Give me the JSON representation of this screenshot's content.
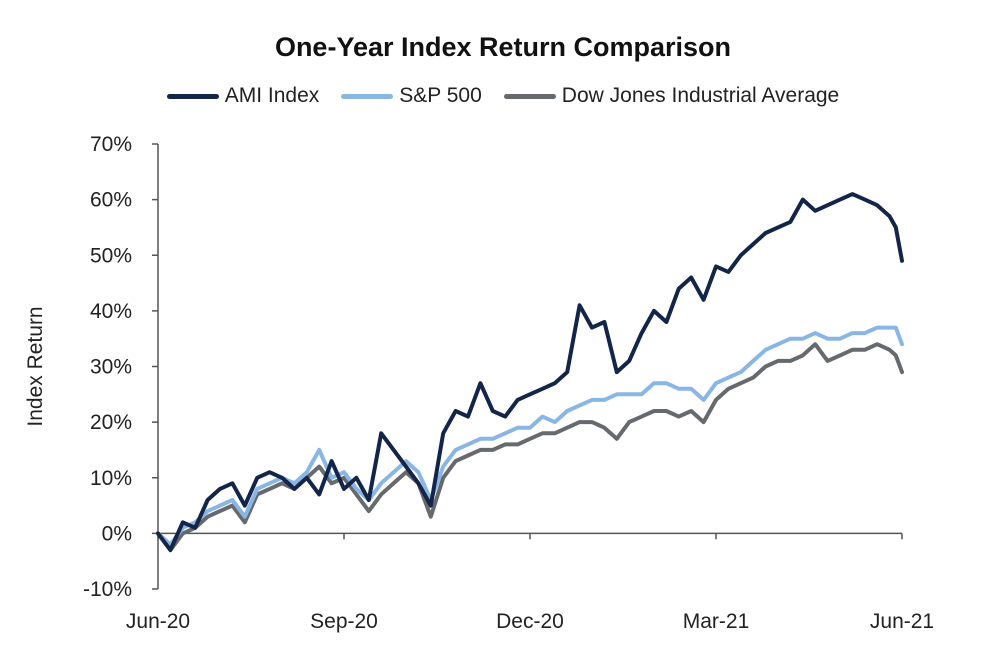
{
  "chart_data": {
    "type": "line",
    "title": "One-Year Index Return Comparison",
    "xlabel": "",
    "ylabel": "Index Return",
    "ylim": [
      -0.1,
      0.7
    ],
    "y_ticks": [
      -0.1,
      0.0,
      0.1,
      0.2,
      0.3,
      0.4,
      0.5,
      0.6,
      0.7
    ],
    "y_tick_labels": [
      "-10%",
      "0%",
      "10%",
      "20%",
      "30%",
      "40%",
      "50%",
      "60%",
      "70%"
    ],
    "y_format": "percent",
    "x_tick_labels": [
      "Jun-20",
      "Sep-20",
      "Dec-20",
      "Mar-21",
      "Jun-21"
    ],
    "x_tick_positions": [
      0,
      3,
      6,
      9,
      12
    ],
    "x_unit": "months since Jun-20",
    "grid": false,
    "legend_position": "top-center",
    "series": [
      {
        "name": "AMI Index",
        "color": "#14254a",
        "x": [
          0,
          0.2,
          0.4,
          0.6,
          0.8,
          1.0,
          1.2,
          1.4,
          1.6,
          1.8,
          2.0,
          2.2,
          2.4,
          2.6,
          2.8,
          3.0,
          3.2,
          3.4,
          3.6,
          3.8,
          4.0,
          4.2,
          4.4,
          4.6,
          4.8,
          5.0,
          5.2,
          5.4,
          5.6,
          5.8,
          6.0,
          6.2,
          6.4,
          6.6,
          6.8,
          7.0,
          7.2,
          7.4,
          7.6,
          7.8,
          8.0,
          8.2,
          8.4,
          8.6,
          8.8,
          9.0,
          9.2,
          9.4,
          9.6,
          9.8,
          10.0,
          10.2,
          10.4,
          10.6,
          10.8,
          11.0,
          11.2,
          11.4,
          11.6,
          11.8,
          11.9,
          12.0
        ],
        "values": [
          0.0,
          -0.03,
          0.02,
          0.01,
          0.06,
          0.08,
          0.09,
          0.05,
          0.1,
          0.11,
          0.1,
          0.08,
          0.1,
          0.07,
          0.13,
          0.08,
          0.1,
          0.06,
          0.18,
          0.15,
          0.12,
          0.09,
          0.05,
          0.18,
          0.22,
          0.21,
          0.27,
          0.22,
          0.21,
          0.24,
          0.25,
          0.26,
          0.27,
          0.29,
          0.41,
          0.37,
          0.38,
          0.29,
          0.31,
          0.36,
          0.4,
          0.38,
          0.44,
          0.46,
          0.42,
          0.48,
          0.47,
          0.5,
          0.52,
          0.54,
          0.55,
          0.56,
          0.6,
          0.58,
          0.59,
          0.6,
          0.61,
          0.6,
          0.59,
          0.57,
          0.55,
          0.49
        ]
      },
      {
        "name": "S&P 500",
        "color": "#8ab6e6",
        "x": [
          0,
          0.2,
          0.4,
          0.6,
          0.8,
          1.0,
          1.2,
          1.4,
          1.6,
          1.8,
          2.0,
          2.2,
          2.4,
          2.6,
          2.8,
          3.0,
          3.2,
          3.4,
          3.6,
          3.8,
          4.0,
          4.2,
          4.4,
          4.6,
          4.8,
          5.0,
          5.2,
          5.4,
          5.6,
          5.8,
          6.0,
          6.2,
          6.4,
          6.6,
          6.8,
          7.0,
          7.2,
          7.4,
          7.6,
          7.8,
          8.0,
          8.2,
          8.4,
          8.6,
          8.8,
          9.0,
          9.2,
          9.4,
          9.6,
          9.8,
          10.0,
          10.2,
          10.4,
          10.6,
          10.8,
          11.0,
          11.2,
          11.4,
          11.6,
          11.8,
          11.9,
          12.0
        ],
        "values": [
          0.0,
          -0.02,
          0.01,
          0.02,
          0.04,
          0.05,
          0.06,
          0.03,
          0.08,
          0.09,
          0.1,
          0.09,
          0.11,
          0.15,
          0.1,
          0.11,
          0.08,
          0.06,
          0.09,
          0.11,
          0.13,
          0.11,
          0.06,
          0.12,
          0.15,
          0.16,
          0.17,
          0.17,
          0.18,
          0.19,
          0.19,
          0.21,
          0.2,
          0.22,
          0.23,
          0.24,
          0.24,
          0.25,
          0.25,
          0.25,
          0.27,
          0.27,
          0.26,
          0.26,
          0.24,
          0.27,
          0.28,
          0.29,
          0.31,
          0.33,
          0.34,
          0.35,
          0.35,
          0.36,
          0.35,
          0.35,
          0.36,
          0.36,
          0.37,
          0.37,
          0.37,
          0.34
        ]
      },
      {
        "name": "Dow Jones Industrial Average",
        "color": "#666a6e",
        "x": [
          0,
          0.2,
          0.4,
          0.6,
          0.8,
          1.0,
          1.2,
          1.4,
          1.6,
          1.8,
          2.0,
          2.2,
          2.4,
          2.6,
          2.8,
          3.0,
          3.2,
          3.4,
          3.6,
          3.8,
          4.0,
          4.2,
          4.4,
          4.6,
          4.8,
          5.0,
          5.2,
          5.4,
          5.6,
          5.8,
          6.0,
          6.2,
          6.4,
          6.6,
          6.8,
          7.0,
          7.2,
          7.4,
          7.6,
          7.8,
          8.0,
          8.2,
          8.4,
          8.6,
          8.8,
          9.0,
          9.2,
          9.4,
          9.6,
          9.8,
          10.0,
          10.2,
          10.4,
          10.6,
          10.8,
          11.0,
          11.2,
          11.4,
          11.6,
          11.8,
          11.9,
          12.0
        ],
        "values": [
          0.0,
          -0.03,
          0.0,
          0.01,
          0.03,
          0.04,
          0.05,
          0.02,
          0.07,
          0.08,
          0.09,
          0.08,
          0.1,
          0.12,
          0.09,
          0.1,
          0.07,
          0.04,
          0.07,
          0.09,
          0.11,
          0.09,
          0.03,
          0.1,
          0.13,
          0.14,
          0.15,
          0.15,
          0.16,
          0.16,
          0.17,
          0.18,
          0.18,
          0.19,
          0.2,
          0.2,
          0.19,
          0.17,
          0.2,
          0.21,
          0.22,
          0.22,
          0.21,
          0.22,
          0.2,
          0.24,
          0.26,
          0.27,
          0.28,
          0.3,
          0.31,
          0.31,
          0.32,
          0.34,
          0.31,
          0.32,
          0.33,
          0.33,
          0.34,
          0.33,
          0.32,
          0.29
        ]
      }
    ]
  }
}
